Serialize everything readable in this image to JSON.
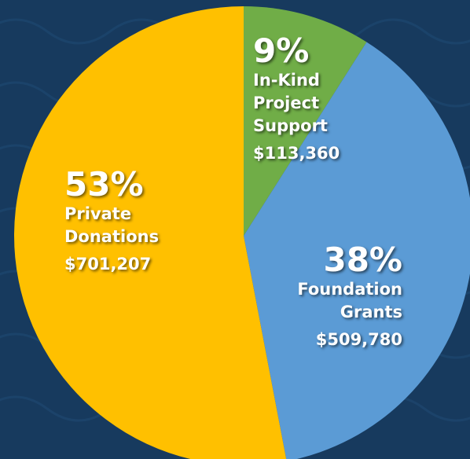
{
  "chart_data": {
    "type": "pie",
    "categories": [
      "In-Kind Project Support",
      "Foundation Grants",
      "Private Donations"
    ],
    "values": [
      9,
      38,
      53
    ],
    "value_labels": [
      "9%",
      "38%",
      "53%"
    ],
    "amounts": [
      113360,
      509780,
      701207
    ],
    "amount_labels": [
      "$113,360",
      "$509,780",
      "$701,207"
    ],
    "colors": [
      "#70ad47",
      "#5b9bd5",
      "#ffc000"
    ]
  }
}
